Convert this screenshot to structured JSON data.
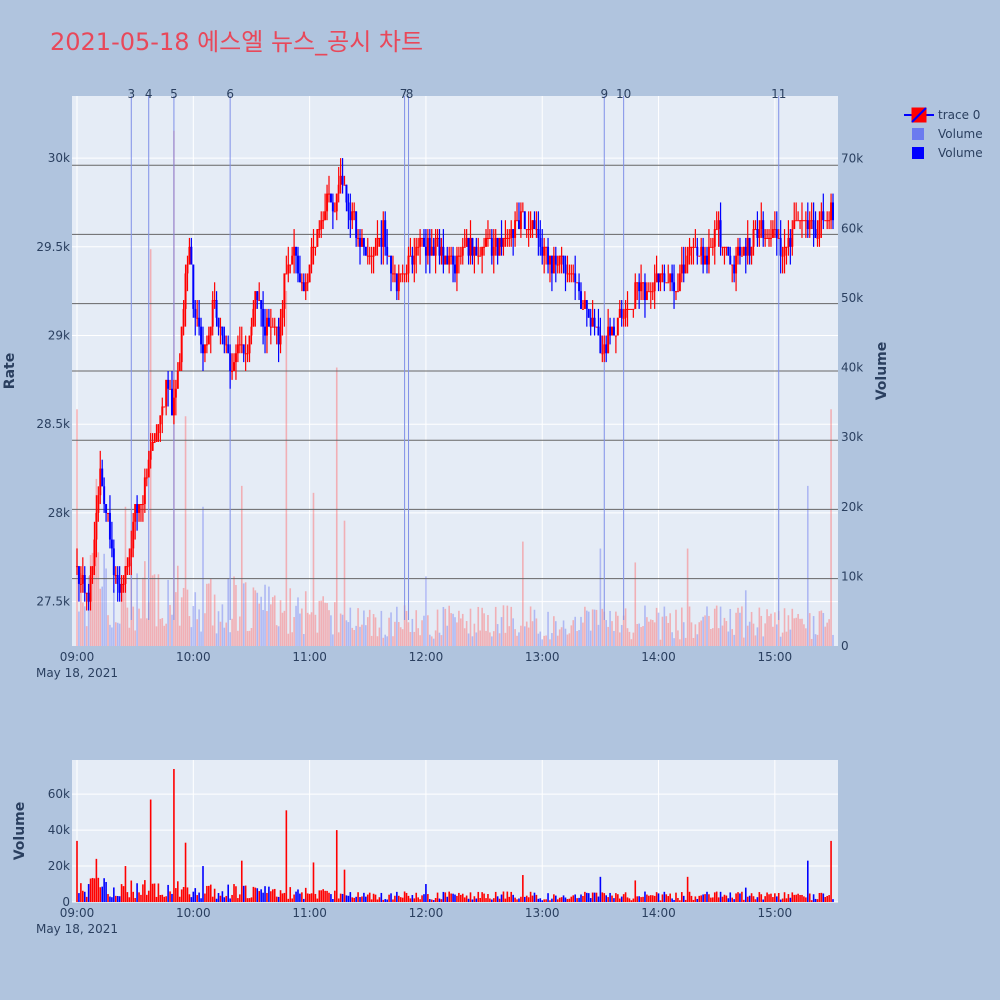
{
  "title": "2021-05-18 에스엘 뉴스_공시 차트",
  "chart_data": [
    {
      "type": "candlestick",
      "panel": "main",
      "y_axis_left": {
        "title": "Rate",
        "range": [
          27250,
          30350
        ],
        "ticks": [
          27500,
          28000,
          28500,
          29000,
          29500,
          30000
        ],
        "tick_labels": [
          "27.5k",
          "28k",
          "28.5k",
          "29k",
          "29.5k",
          "30k"
        ]
      },
      "y_axis_right": {
        "title": "Volume",
        "range": [
          0,
          79000
        ],
        "ticks": [
          0,
          10000,
          20000,
          30000,
          40000,
          50000,
          60000,
          70000
        ],
        "tick_labels": [
          "0",
          "10k",
          "20k",
          "30k",
          "40k",
          "50k",
          "60k",
          "70k"
        ]
      },
      "x_axis": {
        "range": [
          "09:00",
          "15:30"
        ],
        "tick_labels": [
          "09:00",
          "10:00",
          "11:00",
          "12:00",
          "13:00",
          "14:00",
          "15:00"
        ],
        "date_label": "May 18, 2021"
      },
      "legend": {
        "position": "top-right",
        "entries": [
          "trace 0",
          "Volume",
          "Volume"
        ]
      },
      "colors": {
        "up": "#ff0000",
        "down": "#0000ff",
        "up_volume": "#ff6666",
        "down_volume": "#6b7bef",
        "vline": "#8090e8",
        "hline": "#666666"
      },
      "price_keypoints": [
        [
          "09:00",
          27700
        ],
        [
          "09:03",
          27600
        ],
        [
          "09:06",
          27500
        ],
        [
          "09:09",
          27900
        ],
        [
          "09:12",
          28200
        ],
        [
          "09:15",
          28000
        ],
        [
          "09:18",
          27800
        ],
        [
          "09:22",
          27500
        ],
        [
          "09:26",
          27700
        ],
        [
          "09:30",
          28000
        ],
        [
          "09:34",
          28100
        ],
        [
          "09:38",
          28300
        ],
        [
          "09:42",
          28500
        ],
        [
          "09:46",
          28700
        ],
        [
          "09:50",
          28600
        ],
        [
          "09:53",
          28900
        ],
        [
          "09:56",
          29300
        ],
        [
          "09:58",
          29500
        ],
        [
          "10:00",
          29200
        ],
        [
          "10:03",
          29000
        ],
        [
          "10:06",
          28900
        ],
        [
          "10:10",
          29200
        ],
        [
          "10:13",
          29100
        ],
        [
          "10:17",
          28900
        ],
        [
          "10:20",
          28800
        ],
        [
          "10:24",
          29000
        ],
        [
          "10:28",
          28900
        ],
        [
          "10:32",
          29200
        ],
        [
          "10:36",
          29100
        ],
        [
          "10:40",
          29000
        ],
        [
          "10:44",
          29000
        ],
        [
          "10:48",
          29400
        ],
        [
          "10:52",
          29500
        ],
        [
          "10:55",
          29300
        ],
        [
          "10:58",
          29300
        ],
        [
          "11:02",
          29500
        ],
        [
          "11:06",
          29600
        ],
        [
          "11:10",
          29800
        ],
        [
          "11:13",
          29700
        ],
        [
          "11:16",
          29900
        ],
        [
          "11:18",
          29800
        ],
        [
          "11:21",
          29700
        ],
        [
          "11:24",
          29600
        ],
        [
          "11:27",
          29500
        ],
        [
          "11:30",
          29400
        ],
        [
          "11:34",
          29500
        ],
        [
          "11:38",
          29600
        ],
        [
          "11:42",
          29400
        ],
        [
          "11:46",
          29300
        ],
        [
          "11:50",
          29400
        ],
        [
          "11:55",
          29500
        ],
        [
          "12:00",
          29500
        ],
        [
          "12:05",
          29500
        ],
        [
          "12:10",
          29400
        ],
        [
          "12:15",
          29400
        ],
        [
          "12:20",
          29500
        ],
        [
          "12:25",
          29500
        ],
        [
          "12:30",
          29500
        ],
        [
          "12:35",
          29500
        ],
        [
          "12:40",
          29550
        ],
        [
          "12:45",
          29600
        ],
        [
          "12:50",
          29650
        ],
        [
          "12:55",
          29600
        ],
        [
          "13:00",
          29500
        ],
        [
          "13:05",
          29400
        ],
        [
          "13:10",
          29450
        ],
        [
          "13:15",
          29300
        ],
        [
          "13:20",
          29200
        ],
        [
          "13:25",
          29100
        ],
        [
          "13:30",
          28900
        ],
        [
          "13:35",
          29000
        ],
        [
          "13:40",
          29100
        ],
        [
          "13:45",
          29150
        ],
        [
          "13:50",
          29300
        ],
        [
          "13:55",
          29250
        ],
        [
          "14:00",
          29300
        ],
        [
          "14:05",
          29300
        ],
        [
          "14:10",
          29300
        ],
        [
          "14:15",
          29450
        ],
        [
          "14:20",
          29500
        ],
        [
          "14:25",
          29450
        ],
        [
          "14:30",
          29600
        ],
        [
          "14:35",
          29500
        ],
        [
          "14:40",
          29400
        ],
        [
          "14:45",
          29500
        ],
        [
          "14:50",
          29550
        ],
        [
          "14:55",
          29600
        ],
        [
          "15:00",
          29550
        ],
        [
          "15:05",
          29500
        ],
        [
          "15:10",
          29600
        ],
        [
          "15:15",
          29650
        ],
        [
          "15:20",
          29600
        ],
        [
          "15:30",
          29700
        ]
      ],
      "horizontal_lines": [
        29960,
        29570,
        29180,
        28800,
        28410,
        28020,
        27630
      ],
      "events": [
        {
          "label": "3",
          "time": "09:28"
        },
        {
          "label": "4",
          "time": "09:37"
        },
        {
          "label": "5",
          "time": "09:50"
        },
        {
          "label": "6",
          "time": "10:19"
        },
        {
          "label": "7",
          "time": "11:49"
        },
        {
          "label": "8",
          "time": "11:50"
        },
        {
          "label": "9",
          "time": "13:32"
        },
        {
          "label": "10",
          "time": "13:42"
        },
        {
          "label": "11",
          "time": "15:02"
        }
      ],
      "volume_peaks": [
        [
          "09:00",
          34000
        ],
        [
          "09:10",
          24000
        ],
        [
          "09:25",
          20000
        ],
        [
          "09:38",
          57000
        ],
        [
          "09:50",
          74000
        ],
        [
          "09:56",
          33000
        ],
        [
          "10:05",
          20000
        ],
        [
          "10:25",
          23000
        ],
        [
          "10:48",
          51000
        ],
        [
          "11:02",
          22000
        ],
        [
          "11:14",
          40000
        ],
        [
          "11:18",
          18000
        ],
        [
          "12:00",
          10000
        ],
        [
          "12:50",
          15000
        ],
        [
          "13:30",
          14000
        ],
        [
          "13:48",
          12000
        ],
        [
          "14:15",
          14000
        ],
        [
          "14:45",
          8000
        ],
        [
          "15:17",
          23000
        ],
        [
          "15:29",
          34000
        ]
      ]
    },
    {
      "type": "bar",
      "panel": "volume",
      "y_axis": {
        "title": "Volume",
        "range": [
          0,
          79000
        ],
        "ticks": [
          0,
          20000,
          40000,
          60000
        ],
        "tick_labels": [
          "0",
          "20k",
          "40k",
          "60k"
        ]
      },
      "x_axis": {
        "range": [
          "09:00",
          "15:30"
        ],
        "tick_labels": [
          "09:00",
          "10:00",
          "11:00",
          "12:00",
          "13:00",
          "14:00",
          "15:00"
        ],
        "date_label": "May 18, 2021"
      }
    }
  ]
}
